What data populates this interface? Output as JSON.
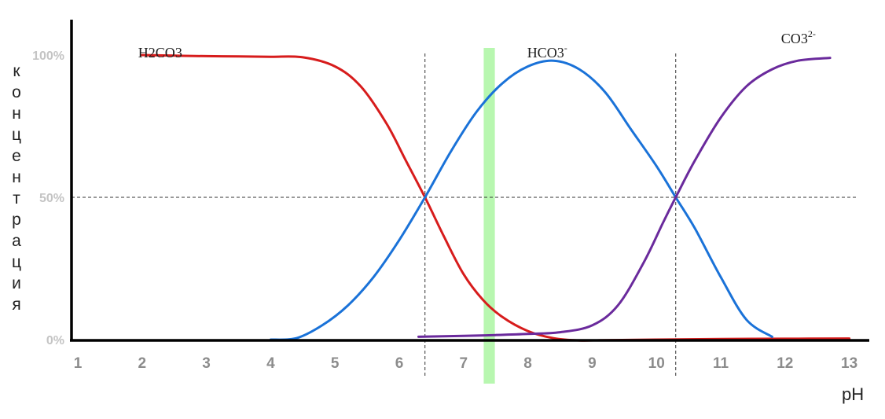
{
  "chart_data": {
    "type": "line",
    "xlabel": "pH",
    "ylabel": "концентрация",
    "x_ticks": [
      "1",
      "2",
      "3",
      "4",
      "5",
      "6",
      "7",
      "8",
      "9",
      "10",
      "11",
      "12",
      "13"
    ],
    "y_ticks": [
      "0%",
      "50%",
      "100%"
    ],
    "xlim": [
      1,
      13
    ],
    "ylim": [
      0,
      100
    ],
    "reference_lines": {
      "pKa1": 6.4,
      "pKa2": 10.3,
      "y_half": 50
    },
    "highlight_band": {
      "from": 7.35,
      "to": 7.45,
      "color": "#b8f7b0"
    },
    "series": [
      {
        "label_main": "H2CO3",
        "label_parts": [
          "H",
          "2",
          "CO",
          "3",
          ""
        ],
        "color": "#d71c1c",
        "label_at": [
          2.0,
          98
        ],
        "x": [
          2,
          2.5,
          3,
          3.5,
          4,
          4.5,
          5,
          5.4,
          5.8,
          6.1,
          6.4,
          6.7,
          7,
          7.3,
          7.6,
          8,
          8.4,
          8.8,
          9.2,
          10,
          11,
          12,
          13
        ],
        "y": [
          100,
          99.8,
          99.6,
          99.5,
          99.4,
          99.2,
          96,
          89,
          76,
          63,
          50,
          36,
          23,
          14,
          8,
          3,
          0.5,
          -0.3,
          -0.2,
          0,
          0.2,
          0.3,
          0.4
        ]
      },
      {
        "label_main": "HCO3",
        "label_parts": [
          "",
          "",
          "HCO",
          "3",
          "-"
        ],
        "color": "#1a72d8",
        "label_at": [
          8.05,
          98
        ],
        "x": [
          4,
          4.4,
          4.8,
          5.2,
          5.6,
          6,
          6.4,
          6.8,
          7.2,
          7.6,
          8,
          8.4,
          8.8,
          9.2,
          9.6,
          10,
          10.3,
          10.6,
          11,
          11.4,
          11.8
        ],
        "y": [
          0,
          0.5,
          5,
          12,
          22,
          35,
          50,
          66,
          80,
          90,
          96,
          98,
          95,
          87,
          74,
          61,
          50,
          39,
          22,
          7,
          1
        ]
      },
      {
        "label_main": "CO3",
        "label_parts": [
          "",
          "",
          "CO",
          "3",
          "2-"
        ],
        "color": "#6a2a9c",
        "label_at": [
          12.0,
          103
        ],
        "x": [
          6.3,
          7,
          7.5,
          8,
          8.5,
          9,
          9.4,
          9.8,
          10.1,
          10.3,
          10.6,
          11,
          11.4,
          11.8,
          12.2,
          12.7
        ],
        "y": [
          1,
          1.3,
          1.6,
          2,
          2.6,
          5,
          12,
          27,
          41,
          50,
          63,
          78,
          89,
          95,
          98,
          99
        ]
      }
    ]
  }
}
